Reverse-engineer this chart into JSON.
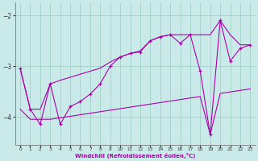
{
  "xlabel": "Windchill (Refroidissement éolien,°C)",
  "bg_color": "#caeaea",
  "line_color": "#aa00aa",
  "grid_color": "#99ccbb",
  "xlim": [
    -0.5,
    23.5
  ],
  "ylim": [
    -4.55,
    -1.75
  ],
  "yticks": [
    -4,
    -3,
    -2
  ],
  "xticks": [
    0,
    1,
    2,
    3,
    4,
    5,
    6,
    7,
    8,
    9,
    10,
    11,
    12,
    13,
    14,
    15,
    16,
    17,
    18,
    19,
    20,
    21,
    22,
    23
  ],
  "x": [
    0,
    1,
    2,
    3,
    4,
    5,
    6,
    7,
    8,
    9,
    10,
    11,
    12,
    13,
    14,
    15,
    16,
    17,
    18,
    19,
    20,
    21,
    22,
    23
  ],
  "y_main": [
    -3.05,
    -3.85,
    -4.15,
    -3.35,
    -4.15,
    -3.8,
    -3.7,
    -3.55,
    -3.35,
    -3.0,
    -2.82,
    -2.75,
    -2.72,
    -2.5,
    -2.42,
    -2.38,
    -2.55,
    -2.38,
    -3.1,
    -4.35,
    -2.1,
    -2.9,
    -2.65,
    -2.58
  ],
  "y_low": [
    -3.85,
    -4.05,
    -4.05,
    -4.05,
    -4.02,
    -3.99,
    -3.96,
    -3.93,
    -3.9,
    -3.87,
    -3.84,
    -3.81,
    -3.78,
    -3.75,
    -3.72,
    -3.69,
    -3.66,
    -3.63,
    -3.6,
    -4.35,
    -3.54,
    -3.51,
    -3.48,
    -3.45
  ],
  "y_high": [
    -3.05,
    -3.85,
    -3.85,
    -3.35,
    -3.28,
    -3.22,
    -3.16,
    -3.1,
    -3.04,
    -2.92,
    -2.82,
    -2.75,
    -2.7,
    -2.5,
    -2.42,
    -2.38,
    -2.38,
    -2.38,
    -2.38,
    -2.38,
    -2.1,
    -2.38,
    -2.58,
    -2.58
  ]
}
